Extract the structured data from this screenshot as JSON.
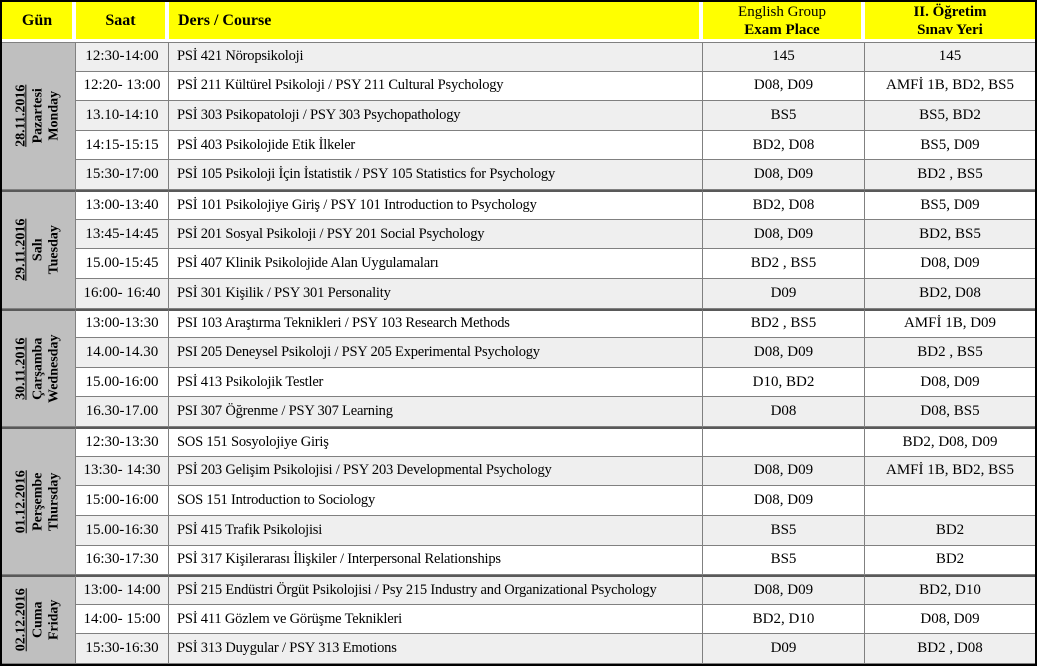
{
  "header": {
    "gun": "Gün",
    "saat": "Saat",
    "ders": "Ders / Course",
    "english_line1": "English Group",
    "english_line2": "Exam Place",
    "ogretim_line1": "II. Öğretim",
    "ogretim_line2": "Sınav Yeri"
  },
  "colors": {
    "header_bg": "#FFFF00",
    "day_column_bg": "#BFBFBF",
    "stripe_bg": "#EFEFEF",
    "grid_border": "#808080",
    "outer_border": "#000000"
  },
  "days": [
    {
      "date": "28.11.2016",
      "name_tr": "Pazartesi",
      "name_en": "Monday",
      "rows": [
        {
          "time": "12:30-14:00",
          "course": "PSİ 421 Nöropsikoloji",
          "english_place": "145",
          "ogretim_place": "145"
        },
        {
          "time": "12:20- 13:00",
          "course": "PSİ 211 Kültürel Psikoloji / PSY 211 Cultural Psychology",
          "english_place": "D08, D09",
          "ogretim_place": "AMFİ 1B, BD2, BS5"
        },
        {
          "time": "13.10-14:10",
          "course": "PSİ 303 Psikopatoloji / PSY 303 Psychopathology",
          "english_place": "BS5",
          "ogretim_place": "BS5, BD2"
        },
        {
          "time": "14:15-15:15",
          "course": "PSİ 403 Psikolojide Etik İlkeler",
          "english_place": "BD2, D08",
          "ogretim_place": "BS5, D09"
        },
        {
          "time": "15:30-17:00",
          "course": "PSİ 105 Psikoloji İçin İstatistik / PSY 105 Statistics for Psychology",
          "english_place": "D08, D09",
          "ogretim_place": "BD2 , BS5"
        }
      ]
    },
    {
      "date": "29.11.2016",
      "name_tr": "Salı",
      "name_en": "Tuesday",
      "rows": [
        {
          "time": "13:00-13:40",
          "course": "PSİ 101 Psikolojiye Giriş / PSY 101 Introduction to Psychology",
          "english_place": "BD2, D08",
          "ogretim_place": "BS5, D09"
        },
        {
          "time": "13:45-14:45",
          "course": "PSİ 201 Sosyal Psikoloji / PSY 201 Social Psychology",
          "english_place": "D08, D09",
          "ogretim_place": "BD2, BS5"
        },
        {
          "time": "15.00-15:45",
          "course": "PSİ 407 Klinik Psikolojide Alan Uygulamaları",
          "english_place": "BD2 , BS5",
          "ogretim_place": "D08, D09"
        },
        {
          "time": "16:00- 16:40",
          "course": "PSİ 301 Kişilik / PSY 301 Personality",
          "english_place": "D09",
          "ogretim_place": "BD2, D08"
        }
      ]
    },
    {
      "date": "30.11.2016",
      "name_tr": "Çarşamba",
      "name_en": "Wednesday",
      "rows": [
        {
          "time": "13:00-13:30",
          "course": "PSI 103 Araştırma Teknikleri / PSY 103 Research Methods",
          "english_place": "BD2 , BS5",
          "ogretim_place": "AMFİ 1B, D09"
        },
        {
          "time": "14.00-14.30",
          "course": "PSI 205 Deneysel Psikoloji / PSY 205 Experimental Psychology",
          "english_place": "D08, D09",
          "ogretim_place": "BD2 , BS5"
        },
        {
          "time": "15.00-16:00",
          "course": "PSİ 413 Psikolojik Testler",
          "english_place": "D10, BD2",
          "ogretim_place": "D08, D09"
        },
        {
          "time": "16.30-17.00",
          "course": "PSI 307 Öğrenme / PSY 307 Learning",
          "english_place": "D08",
          "ogretim_place": "D08, BS5"
        }
      ]
    },
    {
      "date": "01.12.2016",
      "name_tr": "Perşembe",
      "name_en": "Thursday",
      "rows": [
        {
          "time": "12:30-13:30",
          "course": "SOS 151 Sosyolojiye Giriş",
          "english_place": "",
          "ogretim_place": "BD2, D08, D09"
        },
        {
          "time": "13:30- 14:30",
          "course": "PSİ 203 Gelişim Psikolojisi / PSY 203 Developmental Psychology",
          "english_place": "D08, D09",
          "ogretim_place": "AMFİ 1B, BD2, BS5"
        },
        {
          "time": "15:00-16:00",
          "course": "SOS 151 Introduction to Sociology",
          "english_place": "D08, D09",
          "ogretim_place": ""
        },
        {
          "time": "15.00-16:30",
          "course": "PSİ 415 Trafik Psikolojisi",
          "english_place": "BS5",
          "ogretim_place": "BD2"
        },
        {
          "time": "16:30-17:30",
          "course": "PSİ 317 Kişilerarası İlişkiler / Interpersonal Relationships",
          "english_place": "BS5",
          "ogretim_place": "BD2"
        }
      ]
    },
    {
      "date": "02.12.2016",
      "name_tr": "Cuma",
      "name_en": "Friday",
      "rows": [
        {
          "time": "13:00- 14:00",
          "course": "PSİ 215 Endüstri Örgüt Psikolojisi / Psy 215 Industry and Organizational Psychology",
          "english_place": "D08, D09",
          "ogretim_place": "BD2, D10"
        },
        {
          "time": "14:00- 15:00",
          "course": "PSİ 411 Gözlem ve Görüşme Teknikleri",
          "english_place": "BD2, D10",
          "ogretim_place": "D08, D09"
        },
        {
          "time": "15:30-16:30",
          "course": "PSİ 313 Duygular / PSY 313 Emotions",
          "english_place": "D09",
          "ogretim_place": "BD2 , D08"
        }
      ]
    }
  ]
}
